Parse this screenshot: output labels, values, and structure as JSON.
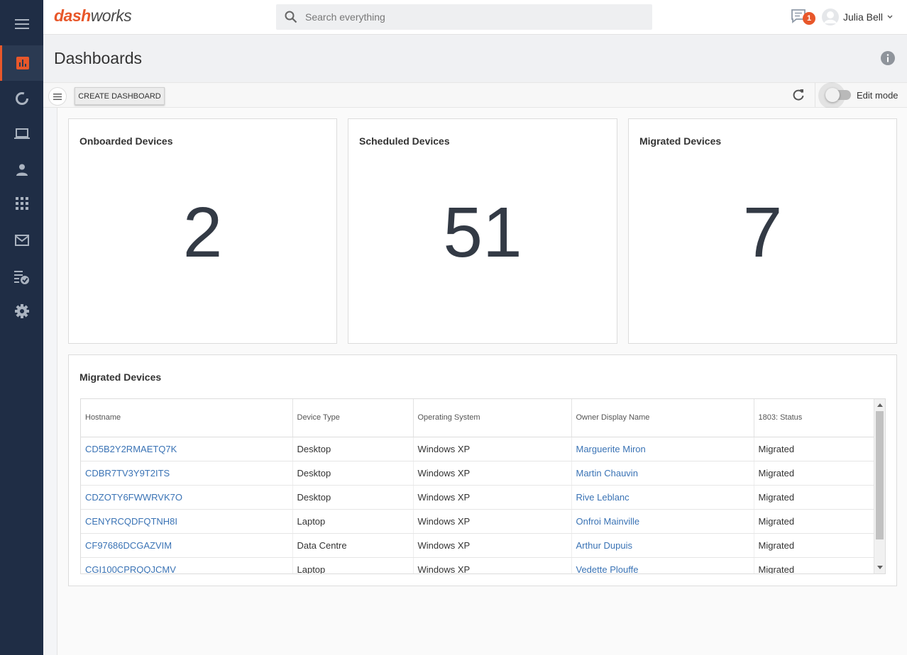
{
  "app": {
    "logo_part1": "dash",
    "logo_part2": "works",
    "accent_color": "#e8572a"
  },
  "sidebar": {
    "items": [
      {
        "icon": "hamburger-icon"
      },
      {
        "icon": "dashboard-chart-icon",
        "active": true
      },
      {
        "icon": "circular-progress-icon"
      },
      {
        "icon": "laptop-icon"
      },
      {
        "icon": "person-icon"
      },
      {
        "icon": "apps-grid-icon"
      },
      {
        "icon": "mail-icon"
      },
      {
        "icon": "checklist-icon"
      },
      {
        "icon": "gear-icon"
      }
    ]
  },
  "header": {
    "search_placeholder": "Search everything",
    "notification_count": "1",
    "user_name": "Julia Bell"
  },
  "page": {
    "title": "Dashboards"
  },
  "toolbar": {
    "create_label": "CREATE DASHBOARD",
    "edit_mode_label": "Edit mode",
    "edit_mode_on": false
  },
  "cards": [
    {
      "title": "Onboarded Devices",
      "value": "2"
    },
    {
      "title": "Scheduled Devices",
      "value": "51"
    },
    {
      "title": "Migrated Devices",
      "value": "7"
    }
  ],
  "migrated_table": {
    "title": "Migrated Devices",
    "columns": [
      "Hostname",
      "Device Type",
      "Operating System",
      "Owner Display Name",
      "1803: Status"
    ],
    "rows": [
      {
        "hostname": "CD5B2Y2RMAETQ7K",
        "device_type": "Desktop",
        "os": "Windows XP",
        "owner": "Marguerite Miron",
        "status": "Migrated"
      },
      {
        "hostname": "CDBR7TV3Y9T2ITS",
        "device_type": "Desktop",
        "os": "Windows XP",
        "owner": "Martin Chauvin",
        "status": "Migrated"
      },
      {
        "hostname": "CDZOTY6FWWRVK7O",
        "device_type": "Desktop",
        "os": "Windows XP",
        "owner": "Rive Leblanc",
        "status": "Migrated"
      },
      {
        "hostname": "CENYRCQDFQTNH8I",
        "device_type": "Laptop",
        "os": "Windows XP",
        "owner": "Onfroi Mainville",
        "status": "Migrated"
      },
      {
        "hostname": "CF97686DCGAZVIM",
        "device_type": "Data Centre",
        "os": "Windows XP",
        "owner": "Arthur Dupuis",
        "status": "Migrated"
      },
      {
        "hostname": "CGI100CPRQQJCMV",
        "device_type": "Laptop",
        "os": "Windows XP",
        "owner": "Vedette Plouffe",
        "status": "Migrated"
      }
    ]
  }
}
